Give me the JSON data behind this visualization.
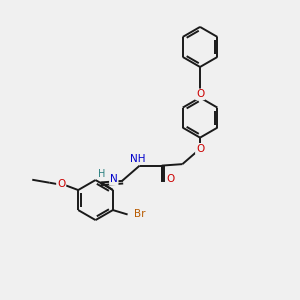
{
  "bg_color": "#f0f0f0",
  "bond_color": "#1a1a1a",
  "atom_colors": {
    "O": "#cc0000",
    "N": "#0000cc",
    "Br": "#b85a00",
    "H_imine": "#2a8080",
    "C": "#1a1a1a"
  },
  "lw": 1.4,
  "ring_r": 0.68
}
